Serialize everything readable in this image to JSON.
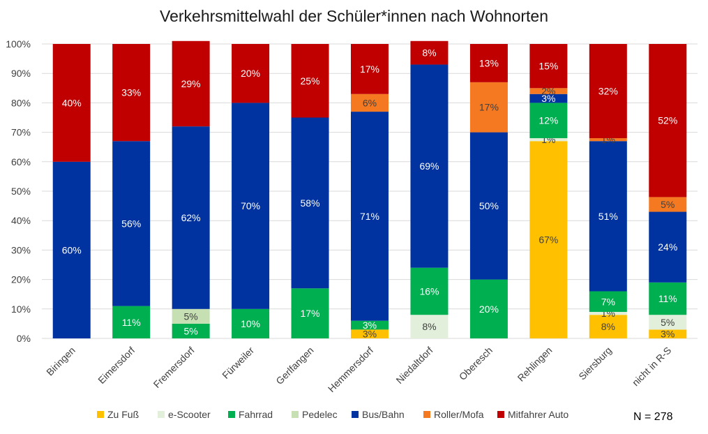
{
  "chart_data": {
    "type": "bar",
    "stacked": true,
    "title": "Verkehrsmittelwahl der Schüler*innen nach Wohnorten",
    "annotation": "N = 278",
    "ylim": [
      0,
      100
    ],
    "yticks": [
      "0%",
      "10%",
      "20%",
      "30%",
      "40%",
      "50%",
      "60%",
      "70%",
      "80%",
      "90%",
      "100%"
    ],
    "grid": true,
    "legend_position": "bottom",
    "categories": [
      "Biringen",
      "Eimersdorf",
      "Fremersdorf",
      "Fürweiler",
      "Gerlfangen",
      "Hemmersdorf",
      "Niedaltdorf",
      "Oberesch",
      "Rehlingen",
      "Siersburg",
      "nicht in R-S"
    ],
    "series": [
      {
        "name": "Zu Fuß",
        "color": "#ffc000",
        "values": [
          0,
          0,
          0,
          0,
          0,
          3,
          0,
          0,
          67,
          8,
          3
        ],
        "labels": [
          "",
          "",
          "",
          "",
          "",
          "3%",
          "",
          "",
          "67%",
          "8%",
          "3%"
        ]
      },
      {
        "name": "e-Scooter",
        "color": "#e2efda",
        "values": [
          0,
          0,
          0,
          0,
          0,
          0,
          8,
          0,
          1,
          1,
          5
        ],
        "labels": [
          "",
          "",
          "",
          "",
          "",
          "",
          "8%",
          "",
          "1%",
          "1%",
          "5%"
        ]
      },
      {
        "name": "Fahrrad",
        "color": "#00b050",
        "values": [
          0,
          11,
          5,
          10,
          17,
          3,
          16,
          20,
          12,
          7,
          11
        ],
        "labels": [
          "",
          "11%",
          "5%",
          "10%",
          "17%",
          "3%",
          "16%",
          "20%",
          "12%",
          "7%",
          "11%"
        ]
      },
      {
        "name": "Pedelec",
        "color": "#c6e0b4",
        "values": [
          0,
          0,
          5,
          0,
          0,
          0,
          0,
          0,
          0,
          0,
          0
        ],
        "labels": [
          "",
          "",
          "5%",
          "",
          "",
          "",
          "",
          "",
          "",
          "",
          ""
        ]
      },
      {
        "name": "Bus/Bahn",
        "color": "#0033a0",
        "values": [
          60,
          56,
          62,
          70,
          58,
          71,
          69,
          50,
          3,
          51,
          24
        ],
        "labels": [
          "60%",
          "56%",
          "62%",
          "70%",
          "58%",
          "71%",
          "69%",
          "50%",
          "3%",
          "51%",
          "24%"
        ]
      },
      {
        "name": "Roller/Mofa",
        "color": "#f47920",
        "values": [
          0,
          0,
          0,
          0,
          0,
          6,
          0,
          17,
          2,
          1,
          5
        ],
        "labels": [
          "",
          "",
          "",
          "",
          "",
          "6%",
          "",
          "17%",
          "2%",
          "1%",
          "5%"
        ]
      },
      {
        "name": "Mitfahrer Auto",
        "color": "#c00000",
        "values": [
          40,
          33,
          29,
          20,
          25,
          17,
          8,
          13,
          15,
          32,
          52
        ],
        "labels": [
          "40%",
          "33%",
          "29%",
          "20%",
          "25%",
          "17%",
          "8%",
          "13%",
          "15%",
          "32%",
          "52%"
        ]
      }
    ]
  }
}
